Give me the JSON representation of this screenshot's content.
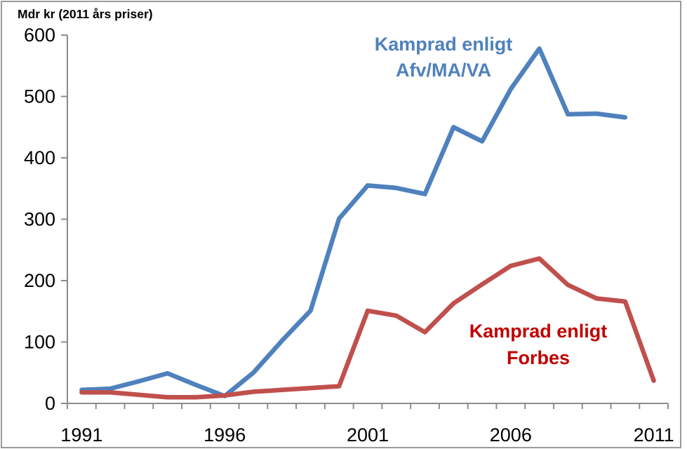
{
  "chart_data": {
    "type": "line",
    "title": "Mdr kr (2011 års priser)",
    "categories": [
      1991,
      1992,
      1993,
      1994,
      1995,
      1996,
      1997,
      1998,
      1999,
      2000,
      2001,
      2002,
      2003,
      2004,
      2005,
      2006,
      2007,
      2008,
      2009,
      2010,
      2011
    ],
    "x_tick_labels": [
      "1991",
      "1996",
      "2001",
      "2006",
      "2011"
    ],
    "y_ticks": [
      0,
      100,
      200,
      300,
      400,
      500,
      600
    ],
    "ylim": [
      0,
      600
    ],
    "xlabel": "",
    "ylabel": "",
    "grid": false,
    "legend_position": "annotations-inline",
    "series": [
      {
        "name": "Kamprad enligt Afv/MA/VA",
        "color": "#4F81BD",
        "values": [
          22,
          24,
          36,
          49,
          30,
          12,
          50,
          102,
          151,
          301,
          355,
          351,
          341,
          450,
          427,
          512,
          578,
          471,
          472,
          466,
          null
        ]
      },
      {
        "name": "Kamprad enligt Forbes",
        "color": "#C0504D",
        "values": [
          18,
          18,
          14,
          10,
          10,
          13,
          19,
          22,
          25,
          28,
          151,
          143,
          116,
          163,
          194,
          224,
          236,
          193,
          171,
          166,
          37
        ]
      }
    ],
    "annotations": [
      {
        "line1": "Kamprad enligt",
        "line2": "Afv/MA/VA",
        "color": "#4F81BD"
      },
      {
        "line1": "Kamprad enligt",
        "line2": "Forbes",
        "color": "#C00000"
      }
    ],
    "axis_color": "#8C8C8C",
    "border_color": "#9B9B9B"
  }
}
